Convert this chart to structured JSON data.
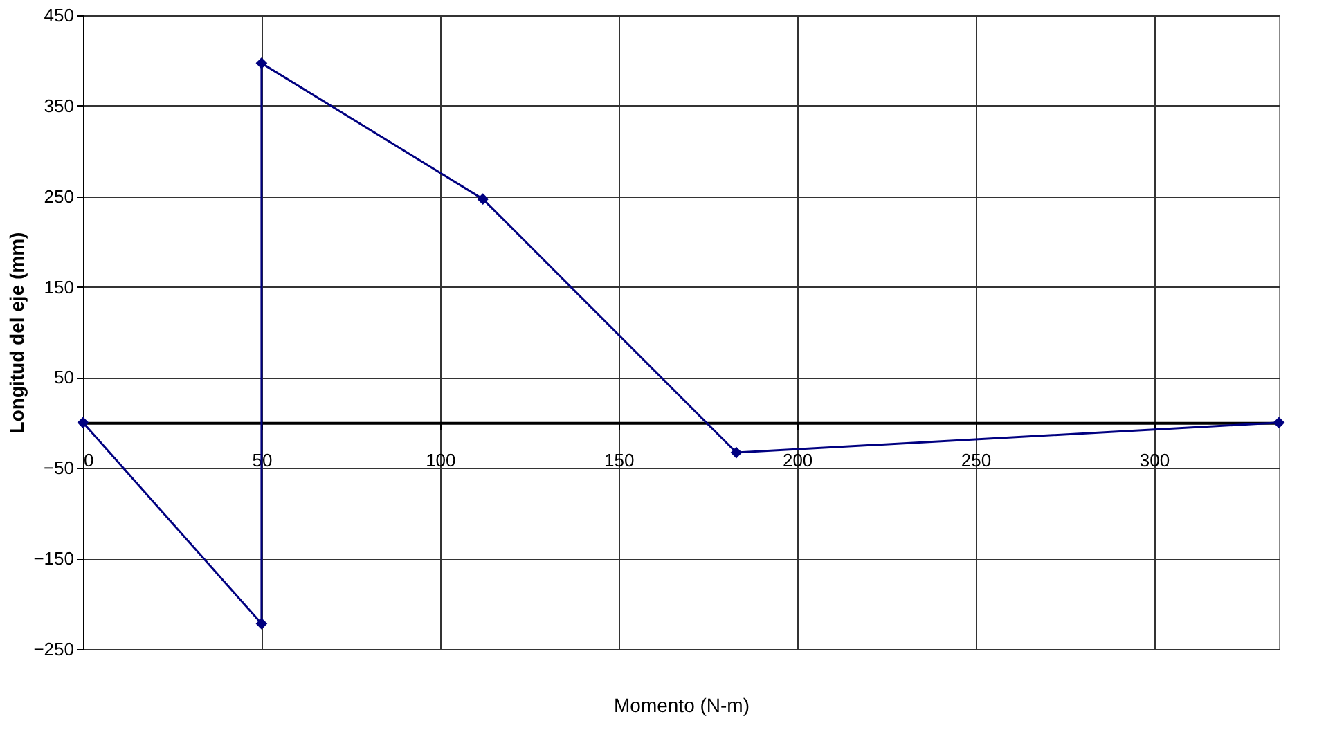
{
  "chart_data": {
    "type": "line",
    "xlabel": "Momento  (N-m)",
    "ylabel": "Longitud del eje (mm)",
    "x": [
      0,
      50,
      50,
      112,
      183,
      335
    ],
    "series": [
      {
        "color": "#000080",
        "values": [
          0,
          -222,
          397,
          247,
          -33,
          0
        ]
      }
    ],
    "xlim": [
      0,
      335
    ],
    "xticks": [
      0,
      50,
      100,
      150,
      200,
      250,
      300
    ],
    "ylim": [
      -250,
      450
    ],
    "yticks": [
      -250,
      -150,
      -50,
      50,
      150,
      250,
      350,
      450
    ],
    "grid": true,
    "marker": "diamond",
    "line_style": "solid"
  }
}
